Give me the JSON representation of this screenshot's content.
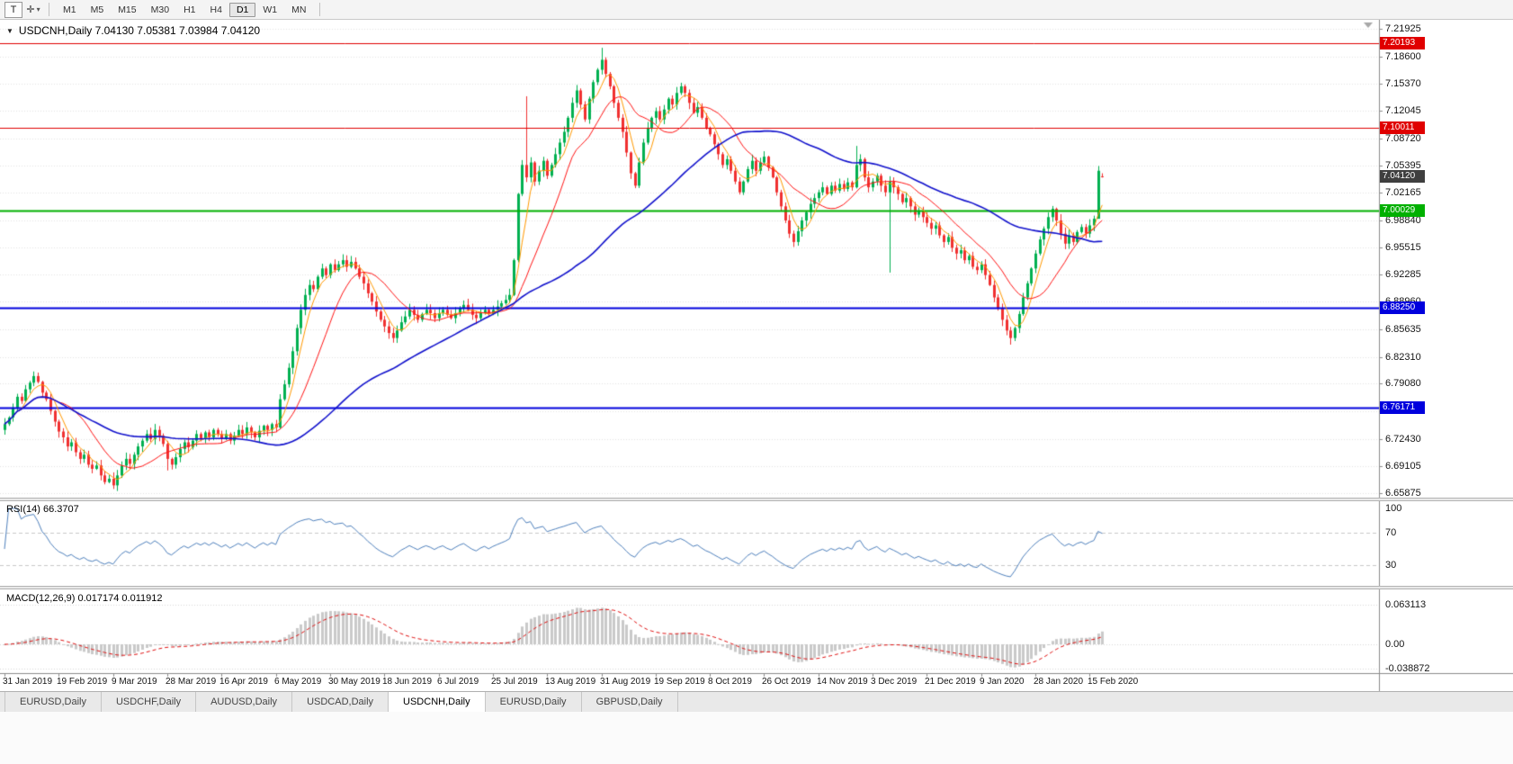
{
  "toolbar": {
    "tool_button": "T",
    "cursor_icon": "✛",
    "dropdown_icon": "▾",
    "timeframes": [
      "M1",
      "M5",
      "M15",
      "M30",
      "H1",
      "H4",
      "D1",
      "W1",
      "MN"
    ],
    "active_timeframe": "D1"
  },
  "chart": {
    "dropdown_icon": "▼",
    "header_text": "USDCNH,Daily 7.04130 7.05381 7.03984 7.04120"
  },
  "chart_data": {
    "type": "candlestick",
    "symbol": "USDCNH",
    "period": "Daily",
    "ohlc": {
      "open": "7.04130",
      "high": "7.05381",
      "low": "7.03984",
      "close": "7.04120"
    },
    "price_axis": [
      "7.21925",
      "7.18600",
      "7.15370",
      "7.12045",
      "7.08720",
      "7.05395",
      "7.02165",
      "6.98840",
      "6.95515",
      "6.92285",
      "6.88960",
      "6.85635",
      "6.82310",
      "6.79080",
      "6.75755",
      "6.72430",
      "6.69105",
      "6.65875"
    ],
    "date_axis": [
      "31 Jan 2019",
      "19 Feb 2019",
      "9 Mar 2019",
      "28 Mar 2019",
      "16 Apr 2019",
      "6 May 2019",
      "30 May 2019",
      "18 Jun 2019",
      "6 Jul 2019",
      "25 Jul 2019",
      "13 Aug 2019",
      "31 Aug 2019",
      "19 Sep 2019",
      "8 Oct 2019",
      "26 Oct 2019",
      "14 Nov 2019",
      "3 Dec 2019",
      "21 Dec 2019",
      "9 Jan 2020",
      "28 Jan 2020",
      "15 Feb 2020"
    ],
    "bars_per_label": 13,
    "first_open": 6.735,
    "closes": [
      6.742,
      6.75,
      6.762,
      6.775,
      6.77,
      6.784,
      6.792,
      6.8,
      6.793,
      6.78,
      6.772,
      6.758,
      6.745,
      6.733,
      6.726,
      6.715,
      6.72,
      6.708,
      6.7,
      6.705,
      6.693,
      6.688,
      6.692,
      6.68,
      6.672,
      6.676,
      6.668,
      6.68,
      6.692,
      6.7,
      6.694,
      6.705,
      6.715,
      6.722,
      6.73,
      6.724,
      6.735,
      6.728,
      6.718,
      6.7,
      6.693,
      6.702,
      6.712,
      6.72,
      6.714,
      6.722,
      6.73,
      6.725,
      6.732,
      6.726,
      6.735,
      6.73,
      6.724,
      6.73,
      6.722,
      6.728,
      6.735,
      6.73,
      6.738,
      6.732,
      6.726,
      6.734,
      6.74,
      6.735,
      6.742,
      6.738,
      6.772,
      6.79,
      6.81,
      6.83,
      6.858,
      6.88,
      6.898,
      6.91,
      6.905,
      6.92,
      6.93,
      6.922,
      6.935,
      6.928,
      6.935,
      6.94,
      6.932,
      6.938,
      6.93,
      6.92,
      6.912,
      6.9,
      6.89,
      6.878,
      6.868,
      6.86,
      6.852,
      6.846,
      6.855,
      6.865,
      6.872,
      6.88,
      6.874,
      6.868,
      6.875,
      6.88,
      6.876,
      6.87,
      6.876,
      6.88,
      6.874,
      6.87,
      6.876,
      6.882,
      6.886,
      6.88,
      6.874,
      6.87,
      6.876,
      6.88,
      6.875,
      6.88,
      6.884,
      6.888,
      6.892,
      6.898,
      6.94,
      7.02,
      7.055,
      7.04,
      7.058,
      7.035,
      7.048,
      7.06,
      7.042,
      7.055,
      7.068,
      7.082,
      7.095,
      7.112,
      7.13,
      7.145,
      7.128,
      7.11,
      7.135,
      7.155,
      7.17,
      7.182,
      7.165,
      7.15,
      7.13,
      7.112,
      7.095,
      7.07,
      7.045,
      7.03,
      7.058,
      7.082,
      7.1,
      7.112,
      7.12,
      7.11,
      7.122,
      7.135,
      7.128,
      7.142,
      7.15,
      7.142,
      7.13,
      7.118,
      7.125,
      7.112,
      7.1,
      7.092,
      7.08,
      7.068,
      7.055,
      7.062,
      7.048,
      7.035,
      7.022,
      7.035,
      7.05,
      7.06,
      7.048,
      7.058,
      7.065,
      7.052,
      7.04,
      7.022,
      7.005,
      6.988,
      6.972,
      6.962,
      6.975,
      6.988,
      6.998,
      7.008,
      7.015,
      7.022,
      7.028,
      7.02,
      7.03,
      7.024,
      7.032,
      7.026,
      7.034,
      7.028,
      7.055,
      7.062,
      7.04,
      7.028,
      7.035,
      7.042,
      7.03,
      7.022,
      7.035,
      7.028,
      7.02,
      7.01,
      7.015,
      7.005,
      6.995,
      7.0,
      6.992,
      6.985,
      6.978,
      6.982,
      6.97,
      6.962,
      6.968,
      6.955,
      6.948,
      6.952,
      6.94,
      6.945,
      6.932,
      6.928,
      6.935,
      6.922,
      6.91,
      6.895,
      6.882,
      6.868,
      6.855,
      6.846,
      6.858,
      6.875,
      6.895,
      6.912,
      6.93,
      6.948,
      6.965,
      6.978,
      6.992,
      7.002,
      6.988,
      6.972,
      6.96,
      6.97,
      6.962,
      6.974,
      6.98,
      6.972,
      6.982,
      6.99,
      7.048,
      7.0412
    ],
    "wick_overrides": {
      "39": {
        "l": 6.686
      },
      "125": {
        "h": 7.138
      },
      "143": {
        "h": 7.1965
      },
      "204": {
        "h": 7.078
      },
      "212": {
        "l": 6.925
      },
      "241": {
        "l": 6.838
      },
      "262": {
        "h": 7.0538,
        "l": 6.9915
      },
      "263": {
        "o": 7.0413,
        "h": 7.045,
        "l": 7.0398
      }
    },
    "hlines": [
      {
        "value": 7.20193,
        "label": "7.20193",
        "color": "#e00000",
        "width": 1
      },
      {
        "value": 7.10011,
        "label": "7.10011",
        "color": "#e00000",
        "width": 1
      },
      {
        "value": 7.00029,
        "label": "7.00029",
        "color": "#00b000",
        "width": 2
      },
      {
        "value": 6.8825,
        "label": "6.88250",
        "color": "#0000dd",
        "width": 2
      },
      {
        "value": 6.76171,
        "label": "6.76171",
        "color": "#0000dd",
        "width": 2
      }
    ],
    "current_price": {
      "value": 7.0412,
      "label": "7.04120",
      "color": "#3f3f3f"
    },
    "moving_averages": [
      {
        "name": "fast",
        "period": 5,
        "color": "#ff9900",
        "width": 1
      },
      {
        "name": "mid",
        "period": 14,
        "color": "#ff1414",
        "width": 1
      },
      {
        "name": "slow",
        "period": 55,
        "color": "#1111cc",
        "width": 1.6
      }
    ],
    "rsi": {
      "label": "RSI(14) 66.3707",
      "period": 14,
      "value": "66.3707",
      "color": "#4f81bd",
      "levels": [
        {
          "label": "100",
          "value": 100
        },
        {
          "label": "70",
          "value": 70
        },
        {
          "label": "30",
          "value": 30
        }
      ]
    },
    "macd": {
      "label": "MACD(12,26,9) 0.017174 0.011912",
      "fast": 12,
      "slow": 26,
      "signal": 9,
      "macd_value": "0.017174",
      "signal_value": "0.011912",
      "hist_color": "#c9c9c9",
      "signal_color": "#e01010",
      "axis": [
        {
          "label": "0.063113",
          "value": 0.063113
        },
        {
          "label": "0.00",
          "value": 0
        },
        {
          "label": "-0.038872",
          "value": -0.038872
        }
      ]
    },
    "colors": {
      "bull": "#00b050",
      "bear": "#f03030",
      "grid": "#e3e3e3",
      "axis_line": "#8c8c8c"
    }
  },
  "tabs": [
    {
      "label": "EURUSD,Daily",
      "active": false
    },
    {
      "label": "USDCHF,Daily",
      "active": false
    },
    {
      "label": "AUDUSD,Daily",
      "active": false
    },
    {
      "label": "USDCAD,Daily",
      "active": false
    },
    {
      "label": "USDCNH,Daily",
      "active": true
    },
    {
      "label": "EURUSD,Daily",
      "active": false
    },
    {
      "label": "GBPUSD,Daily",
      "active": false
    }
  ]
}
